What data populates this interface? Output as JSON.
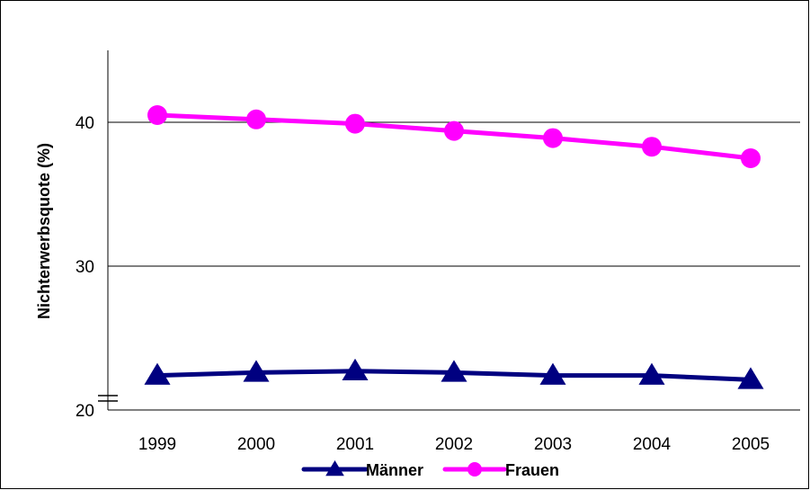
{
  "chart_data": {
    "type": "line",
    "title": "",
    "xlabel": "",
    "ylabel": "Nichterwerbsquote (%)",
    "categories": [
      "1999",
      "2000",
      "2001",
      "2002",
      "2003",
      "2004",
      "2005"
    ],
    "yticks": [
      "20",
      "30",
      "40"
    ],
    "ylim": [
      20,
      45
    ],
    "axis_break": true,
    "grid": true,
    "legend_position": "bottom",
    "series": [
      {
        "name": "Männer",
        "color": "#000080",
        "marker": "triangle",
        "values": [
          22.4,
          22.6,
          22.7,
          22.6,
          22.4,
          22.4,
          22.1
        ]
      },
      {
        "name": "Frauen",
        "color": "#FF00FF",
        "marker": "circle",
        "values": [
          40.5,
          40.2,
          39.9,
          39.4,
          38.9,
          38.3,
          37.5
        ]
      }
    ]
  }
}
